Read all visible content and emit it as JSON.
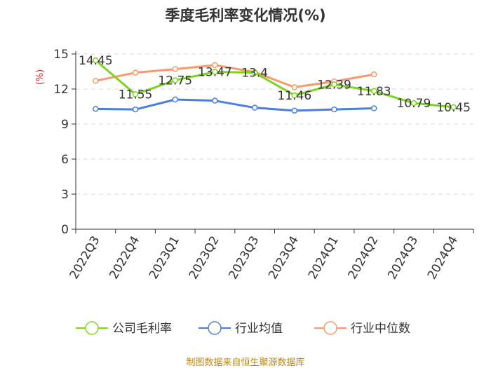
{
  "title": "季度毛利率变化情况(%)",
  "source": "制图数据来自恒生聚源数据库",
  "colors": {
    "company": "#7ed321",
    "industry_avg": "#4a7fdc",
    "industry_median": "#f79a6b",
    "unit_label": "#e02020",
    "source": "#b8860b"
  },
  "chart_data": {
    "type": "line",
    "title": "季度毛利率变化情况(%)",
    "ylabel": "(%)",
    "ylim": [
      0,
      15
    ],
    "yticks": [
      0,
      3,
      6,
      9,
      12,
      15
    ],
    "grid": true,
    "legend_position": "bottom",
    "categories": [
      "2022Q3",
      "2022Q4",
      "2023Q1",
      "2023Q2",
      "2023Q3",
      "2023Q4",
      "2024Q1",
      "2024Q2",
      "2024Q3",
      "2024Q4"
    ],
    "series": [
      {
        "name": "公司毛利率",
        "values": [
          14.45,
          11.55,
          12.75,
          13.47,
          13.4,
          11.46,
          12.39,
          11.83,
          10.79,
          10.45
        ],
        "labels": [
          "14.45",
          "11.55",
          "12.75",
          "13.47",
          "13.4",
          "11.46",
          "12.39",
          "11.83",
          "10.79",
          "10.45"
        ]
      },
      {
        "name": "行业均值",
        "values": [
          10.3,
          10.25,
          11.1,
          11.0,
          10.4,
          10.15,
          10.25,
          10.35,
          null,
          null
        ]
      },
      {
        "name": "行业中位数",
        "values": [
          12.7,
          13.4,
          13.7,
          14.05,
          13.45,
          12.15,
          12.65,
          13.25,
          null,
          null
        ]
      }
    ]
  }
}
